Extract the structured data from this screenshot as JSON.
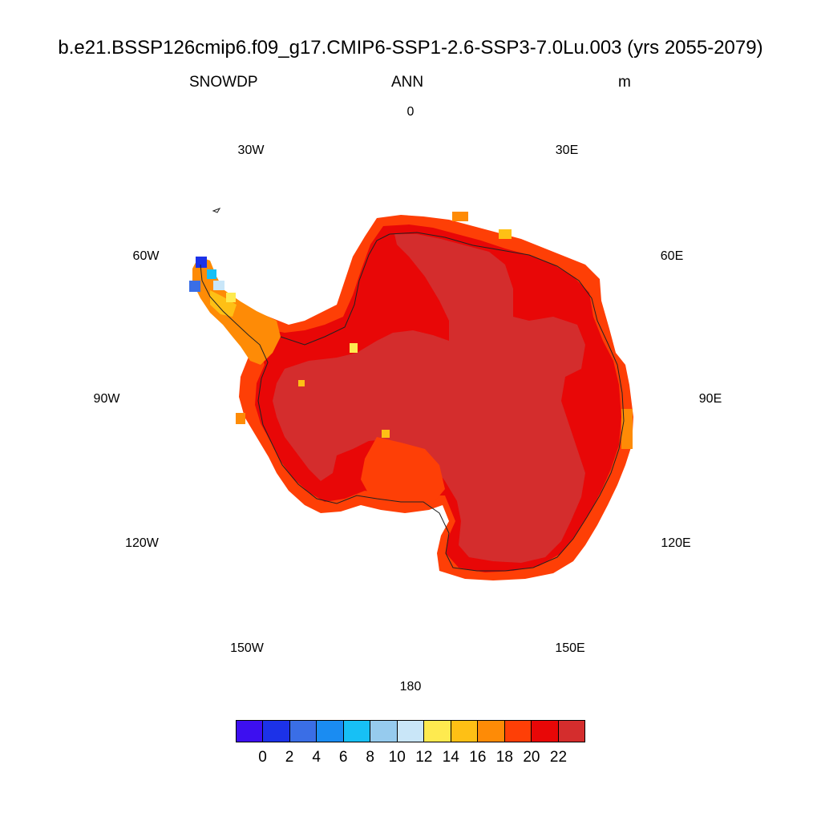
{
  "title": "b.e21.BSSP126cmip6.f09_g17.CMIP6-SSP1-2.6-SSP3-7.0Lu.003 (yrs 2055-2079)",
  "left_string": "SNOWDP",
  "center_string": "ANN",
  "right_string": "m",
  "longitude_labels": [
    {
      "label": "0"
    },
    {
      "label": "30E"
    },
    {
      "label": "60E"
    },
    {
      "label": "90E"
    },
    {
      "label": "120E"
    },
    {
      "label": "150E"
    },
    {
      "label": "180"
    },
    {
      "label": "150W"
    },
    {
      "label": "120W"
    },
    {
      "label": "90W"
    },
    {
      "label": "60W"
    },
    {
      "label": "30W"
    }
  ],
  "colorbar": {
    "colors": [
      "#3d0ff0",
      "#1c32e8",
      "#3a6ee6",
      "#1a8cf2",
      "#17c0f5",
      "#96cbee",
      "#c9e6f8",
      "#feea4f",
      "#fec015",
      "#fe8b06",
      "#fe3f06",
      "#e80707",
      "#d42d2d"
    ],
    "labels": [
      "0",
      "2",
      "4",
      "6",
      "8",
      "10",
      "12",
      "14",
      "16",
      "18",
      "20",
      "22"
    ]
  }
}
